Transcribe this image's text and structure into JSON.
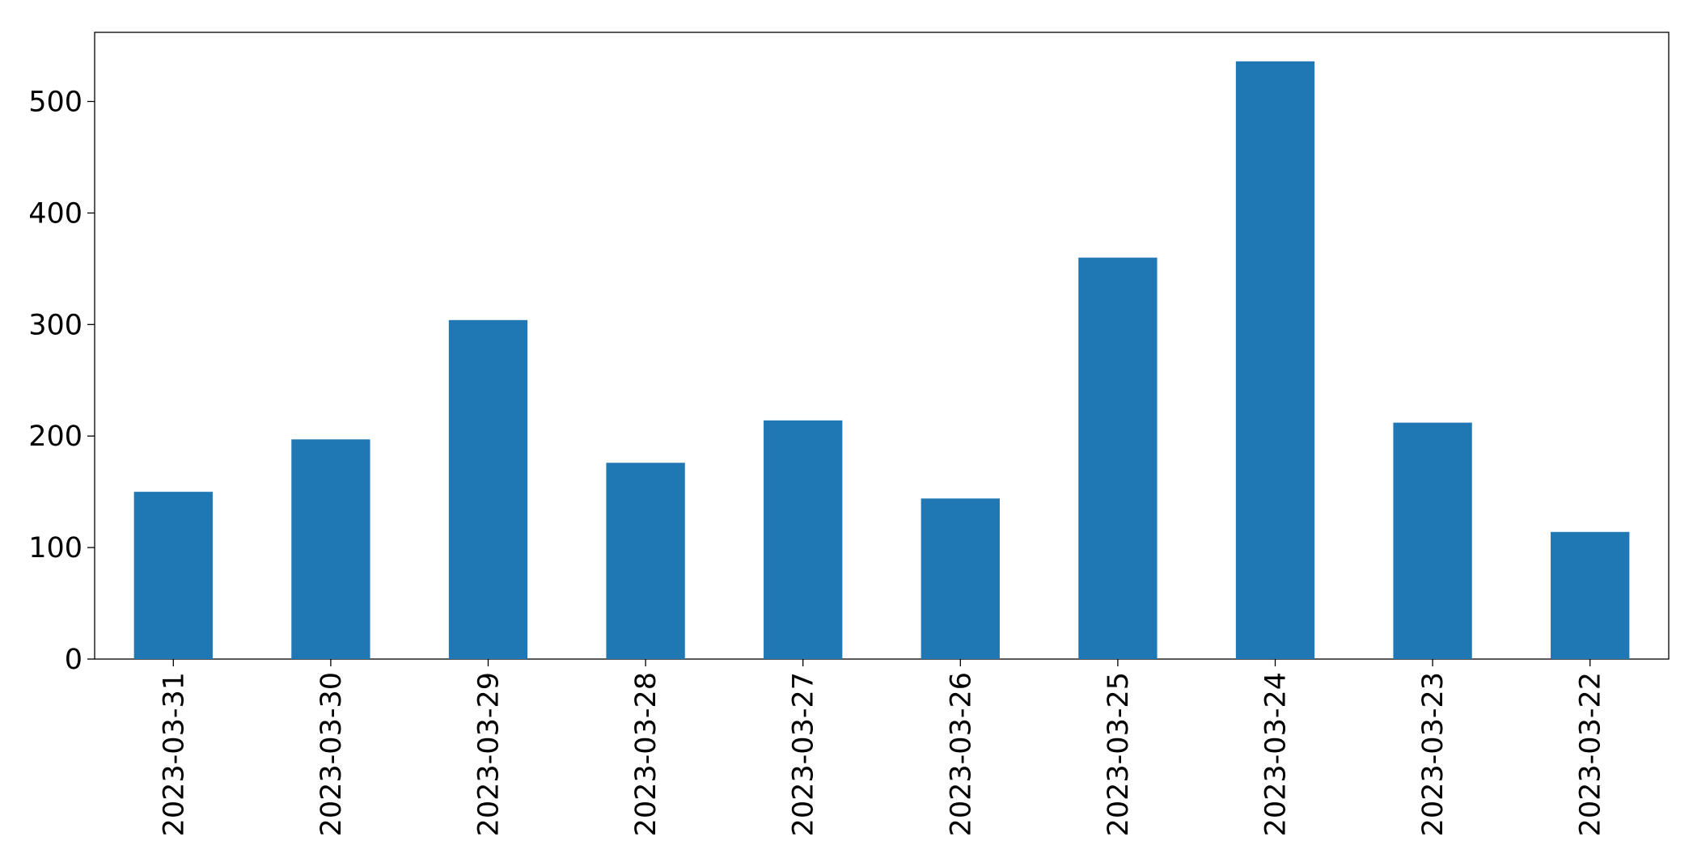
{
  "chart_data": {
    "type": "bar",
    "categories": [
      "2023-03-31",
      "2023-03-30",
      "2023-03-29",
      "2023-03-28",
      "2023-03-27",
      "2023-03-26",
      "2023-03-25",
      "2023-03-24",
      "2023-03-23",
      "2023-03-22"
    ],
    "values": [
      150,
      197,
      304,
      176,
      214,
      144,
      360,
      536,
      212,
      114
    ],
    "color": "#1f77b4",
    "ylim": [
      0,
      562
    ],
    "yticks": [
      0,
      100,
      200,
      300,
      400,
      500
    ],
    "grid": false
  }
}
